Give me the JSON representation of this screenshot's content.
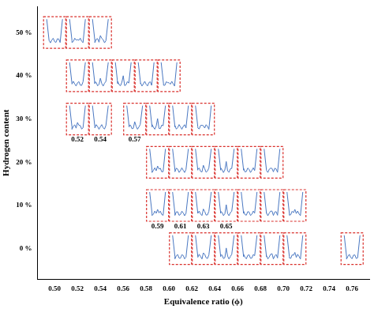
{
  "chart_data": {
    "type": "scatter",
    "x_label": "Equivalence ratio (ϕ)",
    "y_label": "Hydrogen content",
    "x": [
      0.5,
      0.52,
      0.54,
      0.52,
      0.54,
      0.56,
      0.58,
      0.6,
      0.52,
      0.54,
      0.57,
      0.59,
      0.61,
      0.63,
      0.59,
      0.61,
      0.63,
      0.65,
      0.67,
      0.69,
      0.59,
      0.61,
      0.63,
      0.65,
      0.67,
      0.69,
      0.71,
      0.61,
      0.63,
      0.65,
      0.67,
      0.69,
      0.71,
      0.76
    ],
    "values": [
      50,
      50,
      50,
      40,
      40,
      40,
      40,
      40,
      30,
      30,
      30,
      30,
      30,
      30,
      20,
      20,
      20,
      20,
      20,
      20,
      10,
      10,
      10,
      10,
      10,
      10,
      10,
      0,
      0,
      0,
      0,
      0,
      0,
      0
    ],
    "color": "#d9302c",
    "marker": "dashed_box",
    "annotations": [
      {
        "text": "0.52",
        "x": 0.52,
        "y": 30
      },
      {
        "text": "0.54",
        "x": 0.54,
        "y": 30
      },
      {
        "text": "0.57",
        "x": 0.57,
        "y": 30
      },
      {
        "text": "0.59",
        "x": 0.59,
        "y": 10
      },
      {
        "text": "0.61",
        "x": 0.61,
        "y": 10
      },
      {
        "text": "0.63",
        "x": 0.63,
        "y": 10
      },
      {
        "text": "0.65",
        "x": 0.65,
        "y": 10
      }
    ],
    "xlim": [
      0.485,
      0.775
    ],
    "xticks": [
      {
        "value": 0.5,
        "label": "0.50"
      },
      {
        "value": 0.52,
        "label": "0.52"
      },
      {
        "value": 0.54,
        "label": "0.54"
      },
      {
        "value": 0.56,
        "label": "0.56"
      },
      {
        "value": 0.58,
        "label": "0.58"
      },
      {
        "value": 0.6,
        "label": "0.60"
      },
      {
        "value": 0.62,
        "label": "0.62"
      },
      {
        "value": 0.64,
        "label": "0.64"
      },
      {
        "value": 0.66,
        "label": "0.66"
      },
      {
        "value": 0.68,
        "label": "0.68"
      },
      {
        "value": 0.7,
        "label": "0.70"
      },
      {
        "value": 0.72,
        "label": "0.72"
      },
      {
        "value": 0.74,
        "label": "0.74"
      },
      {
        "value": 0.76,
        "label": "0.76"
      }
    ],
    "ylim": [
      -7,
      56
    ],
    "yticks": [
      {
        "value": 0,
        "label": "0 %"
      },
      {
        "value": 10,
        "label": "10 %"
      },
      {
        "value": 20,
        "label": "20 %"
      },
      {
        "value": 30,
        "label": "30 %"
      },
      {
        "value": 40,
        "label": "40 %"
      },
      {
        "value": 50,
        "label": "50 %"
      }
    ],
    "grid": false
  }
}
